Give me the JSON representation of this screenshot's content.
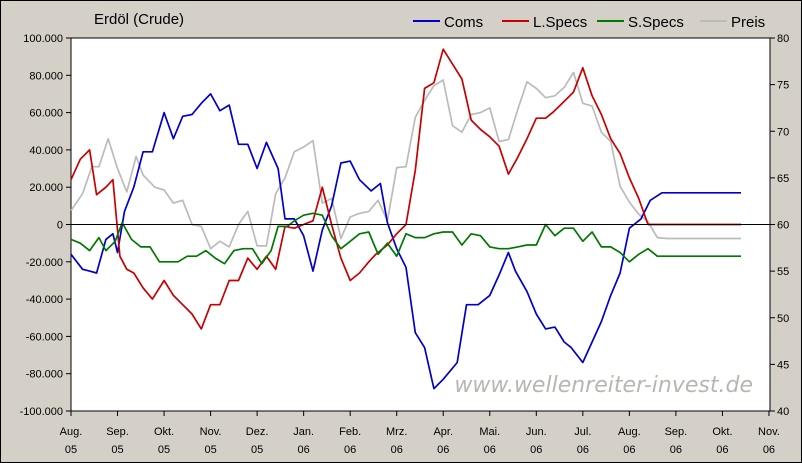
{
  "chart_data": {
    "type": "line",
    "title": "Erdöl (Crude)",
    "watermark": "www.wellenreiter-invest.de",
    "legend_position": "top-right",
    "grid": false,
    "x_ticks": [
      {
        "month": "Aug.",
        "year": "05"
      },
      {
        "month": "Sep.",
        "year": "05"
      },
      {
        "month": "Okt.",
        "year": "05"
      },
      {
        "month": "Nov.",
        "year": "05"
      },
      {
        "month": "Dez.",
        "year": "05"
      },
      {
        "month": "Jan.",
        "year": "06"
      },
      {
        "month": "Feb.",
        "year": "06"
      },
      {
        "month": "Mrz.",
        "year": "06"
      },
      {
        "month": "Apr.",
        "year": "06"
      },
      {
        "month": "Mai.",
        "year": "06"
      },
      {
        "month": "Jun.",
        "year": "06"
      },
      {
        "month": "Jul.",
        "year": "06"
      },
      {
        "month": "Aug.",
        "year": "06"
      },
      {
        "month": "Sep.",
        "year": "06"
      },
      {
        "month": "Okt.",
        "year": "06"
      },
      {
        "month": "Nov.",
        "year": "06"
      }
    ],
    "y_left": {
      "ylim": [
        -100000,
        100000
      ],
      "tick_values": [
        100000,
        80000,
        60000,
        40000,
        20000,
        0,
        -20000,
        -40000,
        -60000,
        -80000,
        -100000
      ],
      "tick_labels": [
        "100.000",
        "80.000",
        "60.000",
        "40.000",
        "20.000",
        "0",
        "-20.000",
        "-40.000",
        "-60.000",
        "-80.000",
        "-100.000"
      ]
    },
    "y_right": {
      "ylim": [
        40,
        80
      ],
      "tick_values": [
        80,
        75,
        70,
        65,
        60,
        55,
        50,
        45,
        40
      ],
      "tick_labels": [
        "80",
        "75",
        "70",
        "65",
        "60",
        "55",
        "50",
        "45",
        "40"
      ]
    },
    "series": [
      {
        "name": "Coms",
        "color": "#0000c8",
        "axis": "left",
        "x": [
          0.0,
          0.25,
          0.4,
          0.55,
          0.75,
          0.9,
          1.0,
          1.15,
          1.35,
          1.55,
          1.75,
          2.0,
          2.2,
          2.4,
          2.6,
          2.8,
          3.0,
          3.2,
          3.4,
          3.6,
          3.8,
          4.0,
          4.2,
          4.45,
          4.6,
          4.8,
          5.0,
          5.2,
          5.4,
          5.6,
          5.8,
          6.0,
          6.2,
          6.45,
          6.65,
          6.8,
          7.0,
          7.2,
          7.4,
          7.6,
          7.8,
          8.0,
          8.3,
          8.5,
          8.75,
          9.0,
          9.2,
          9.4,
          9.55,
          9.8,
          10.0,
          10.2,
          10.4,
          10.6,
          10.75,
          11.0,
          11.2,
          11.4,
          11.6,
          11.8,
          12.0,
          12.25,
          12.45,
          12.7,
          12.9,
          13.1,
          13.3,
          13.5,
          13.7,
          13.9,
          14.05,
          14.25,
          14.4
        ],
        "values": [
          -16000,
          -24000,
          -25000,
          -26000,
          -8000,
          -5000,
          -15000,
          7000,
          20000,
          39000,
          39000,
          60000,
          46000,
          58000,
          59000,
          65000,
          70000,
          61000,
          64000,
          43000,
          43000,
          30000,
          44000,
          30000,
          3000,
          3000,
          -6000,
          -25000,
          -3000,
          10000,
          33000,
          34000,
          24000,
          18000,
          22000,
          1000,
          -13000,
          -23000,
          -58000,
          -66000,
          -88000,
          -83000,
          -74000,
          -43000,
          -43000,
          -38000,
          -27000,
          -15000,
          -25000,
          -36000,
          -48000,
          -56000,
          -55000,
          -63000,
          -66000,
          -74000,
          -63000,
          -52000,
          -38000,
          -26000,
          -2000,
          3000,
          13000,
          17000,
          17000,
          17000,
          17000,
          17000,
          17000,
          17000,
          17000,
          17000,
          17000
        ]
      },
      {
        "name": "L.Specs",
        "color": "#c80000",
        "axis": "left",
        "x": [
          0.0,
          0.2,
          0.4,
          0.55,
          0.75,
          0.9,
          1.05,
          1.2,
          1.35,
          1.55,
          1.75,
          2.0,
          2.2,
          2.4,
          2.6,
          2.8,
          3.0,
          3.2,
          3.4,
          3.6,
          3.8,
          4.0,
          4.2,
          4.4,
          4.6,
          4.8,
          5.0,
          5.2,
          5.4,
          5.6,
          5.8,
          6.0,
          6.2,
          6.4,
          6.55,
          6.8,
          7.0,
          7.2,
          7.4,
          7.6,
          7.8,
          8.0,
          8.2,
          8.4,
          8.6,
          8.8,
          9.0,
          9.2,
          9.4,
          9.6,
          9.8,
          10.0,
          10.2,
          10.35,
          10.6,
          10.8,
          11.0,
          11.2,
          11.4,
          11.6,
          11.8,
          12.0,
          12.2,
          12.4,
          12.6,
          12.8,
          13.0,
          13.2,
          13.4,
          13.6,
          13.8,
          14.05,
          14.25,
          14.4
        ],
        "values": [
          24000,
          35000,
          40000,
          16000,
          20000,
          24000,
          -17000,
          -24000,
          -26000,
          -34000,
          -40000,
          -30000,
          -38000,
          -43000,
          -48000,
          -56000,
          -43000,
          -43000,
          -30000,
          -30000,
          -18000,
          -24000,
          -17000,
          -24000,
          -1000,
          -2000,
          0,
          2000,
          20000,
          0,
          -18000,
          -30000,
          -26000,
          -20000,
          -16000,
          -11000,
          -5000,
          0,
          29000,
          73000,
          76000,
          94000,
          86000,
          78000,
          56000,
          51000,
          47000,
          42000,
          27000,
          36000,
          46000,
          57000,
          57000,
          60000,
          66000,
          71000,
          84000,
          69000,
          59000,
          46000,
          38000,
          25000,
          14000,
          0,
          0,
          0,
          0,
          0,
          0,
          0,
          0,
          0,
          0,
          0
        ],
        "comment_trim": 62
      },
      {
        "name": "S.Specs",
        "color": "#007800",
        "axis": "left",
        "x": [
          0.0,
          0.2,
          0.4,
          0.6,
          0.75,
          0.95,
          1.1,
          1.3,
          1.5,
          1.7,
          1.9,
          2.1,
          2.3,
          2.5,
          2.7,
          2.9,
          3.1,
          3.3,
          3.5,
          3.7,
          3.9,
          4.1,
          4.3,
          4.45,
          4.65,
          4.8,
          5.0,
          5.2,
          5.4,
          5.6,
          5.8,
          6.0,
          6.2,
          6.4,
          6.6,
          6.8,
          7.0,
          7.2,
          7.4,
          7.6,
          7.8,
          8.0,
          8.2,
          8.4,
          8.6,
          8.8,
          9.0,
          9.2,
          9.4,
          9.6,
          9.8,
          10.0,
          10.2,
          10.4,
          10.6,
          10.8,
          11.0,
          11.2,
          11.4,
          11.6,
          11.8,
          12.0,
          12.2,
          12.4,
          12.6,
          12.8,
          13.0,
          13.2,
          13.4,
          13.6,
          13.8,
          14.05,
          14.25,
          14.4
        ],
        "values": [
          -8000,
          -10000,
          -14000,
          -7000,
          -14000,
          -9000,
          1000,
          -8000,
          -12000,
          -12000,
          -20000,
          -20000,
          -20000,
          -17000,
          -17000,
          -14000,
          -18000,
          -21000,
          -14000,
          -13000,
          -13000,
          -21000,
          -14000,
          -1000,
          -1000,
          2000,
          5000,
          6000,
          5000,
          -6000,
          -13000,
          -9000,
          -5000,
          -4000,
          -16000,
          -10000,
          -17000,
          -5000,
          -7000,
          -7000,
          -5000,
          -4000,
          -4000,
          -11000,
          -5000,
          -6000,
          -12000,
          -13000,
          -13000,
          -12000,
          -11000,
          -11000,
          0,
          -6000,
          -2000,
          -2000,
          -9000,
          -4000,
          -12000,
          -12000,
          -15000,
          -20000,
          -16000,
          -13000,
          -17000,
          -17000,
          -17000,
          -17000,
          -17000,
          -17000,
          -17000,
          -17000,
          -17000,
          -17000
        ]
      },
      {
        "name": "Preis",
        "color": "#bbbbbb",
        "axis": "right",
        "x": [
          0.0,
          0.25,
          0.45,
          0.6,
          0.8,
          1.0,
          1.2,
          1.4,
          1.55,
          1.8,
          2.0,
          2.2,
          2.4,
          2.6,
          2.8,
          3.0,
          3.2,
          3.4,
          3.6,
          3.8,
          4.0,
          4.2,
          4.4,
          4.6,
          4.8,
          5.0,
          5.2,
          5.4,
          5.6,
          5.8,
          6.0,
          6.2,
          6.4,
          6.6,
          6.8,
          7.0,
          7.2,
          7.4,
          7.6,
          7.8,
          8.0,
          8.2,
          8.4,
          8.6,
          8.8,
          9.0,
          9.2,
          9.4,
          9.6,
          9.8,
          10.0,
          10.2,
          10.4,
          10.6,
          10.8,
          11.0,
          11.2,
          11.4,
          11.6,
          11.8,
          12.0,
          12.2,
          12.4,
          12.6,
          12.8,
          13.0,
          13.2,
          13.4,
          13.6,
          13.8,
          14.0,
          14.2,
          14.4
        ],
        "values": [
          61.5,
          63.3,
          66.2,
          66.2,
          69.2,
          66,
          63.5,
          67.3,
          65.3,
          64,
          63.7,
          62.3,
          62.6,
          60,
          59.8,
          57.4,
          58.2,
          57.6,
          60,
          61.4,
          57.7,
          57.7,
          63.3,
          65,
          67.8,
          68.3,
          69,
          62.3,
          62.8,
          58.5,
          60.8,
          61.2,
          61.4,
          62.6,
          60.4,
          66.1,
          66.2,
          71.5,
          73.3,
          74.9,
          75.5,
          70.6,
          69.9,
          71.8,
          72,
          72.5,
          68.9,
          69.1,
          72.3,
          75.3,
          74.6,
          73.6,
          73.8,
          74.7,
          76.3,
          73,
          72.7,
          69.9,
          68.9,
          64.1,
          62.4,
          61.1,
          60.3,
          58.6,
          58.5,
          58.5,
          58.5,
          58.5,
          58.5,
          58.5,
          58.5,
          58.5,
          58.5
        ]
      }
    ]
  }
}
